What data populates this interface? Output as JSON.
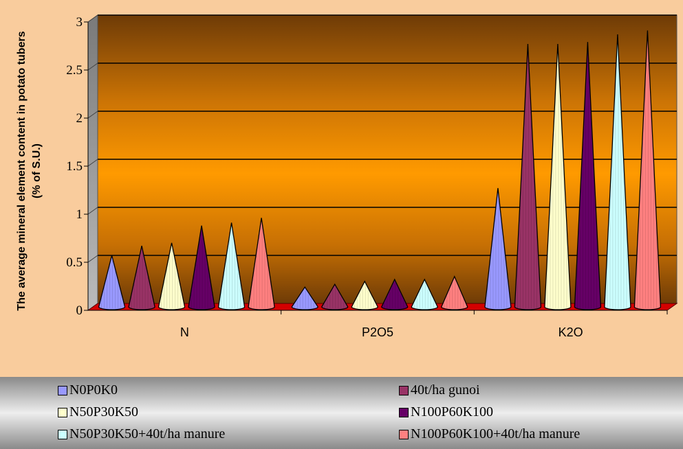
{
  "chart_data": {
    "type": "bar",
    "bar_shape": "cone",
    "categories": [
      "N",
      "P2O5",
      "K2O"
    ],
    "series": [
      {
        "name": "N0P0K0",
        "color": "#9999ff",
        "values": [
          0.5,
          0.17,
          1.2
        ]
      },
      {
        "name": "40t/ha gunoi",
        "color": "#993366",
        "values": [
          0.6,
          0.2,
          2.7
        ]
      },
      {
        "name": "N50P30K50",
        "color": "#ffffcc",
        "values": [
          0.63,
          0.23,
          2.7
        ]
      },
      {
        "name": "N100P60K100",
        "color": "#660066",
        "values": [
          0.81,
          0.25,
          2.72
        ]
      },
      {
        "name": "N50P30K50+40t/ha manure",
        "color": "#ccffff",
        "values": [
          0.84,
          0.25,
          2.8
        ]
      },
      {
        "name": "N100P60K100+40t/ha manure",
        "color": "#ff8080",
        "values": [
          0.89,
          0.28,
          2.84
        ]
      }
    ],
    "title": "",
    "xlabel": "",
    "ylabel": "The average mineral element content in potato tubers (% of S.U.)",
    "ylim": [
      0,
      3
    ],
    "yticks": [
      "0",
      "0.5",
      "1",
      "1.5",
      "2",
      "2.5",
      "3"
    ],
    "grid": true,
    "legend_position": "bottom"
  }
}
